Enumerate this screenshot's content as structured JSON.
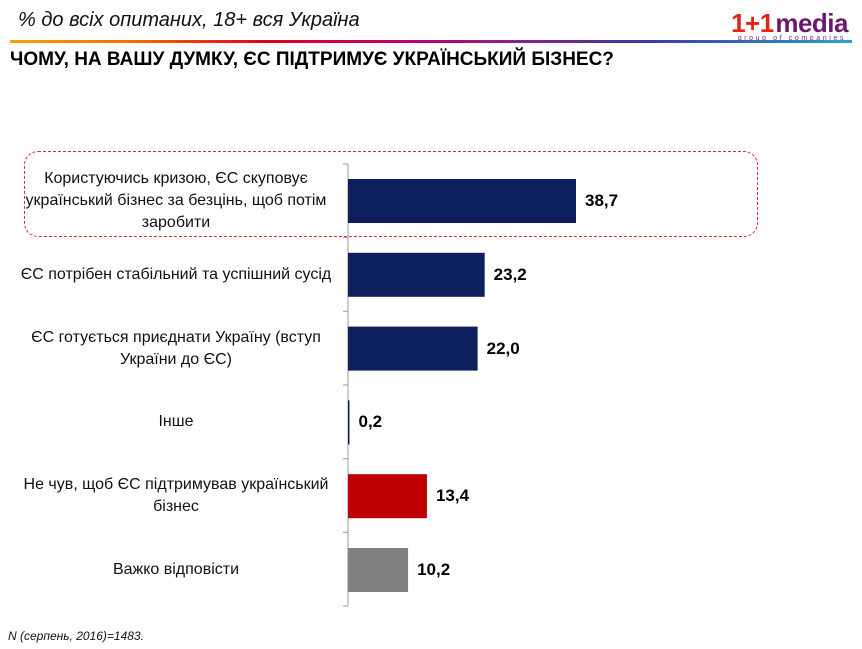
{
  "header": {
    "subtitle": "% до всіх опитаних, 18+ вся Україна",
    "title": "ЧОМУ, НА ВАШУ ДУМКУ, ЄС ПІДТРИМУЄ УКРАЇНСЬКИЙ БІЗНЕС?"
  },
  "logo": {
    "number": "1+1",
    "word": "media",
    "tagline": "group of companies"
  },
  "footnote": "N (серпень, 2016)=1483.",
  "chart_data": {
    "type": "bar",
    "orientation": "horizontal",
    "xlim": [
      0,
      45
    ],
    "grid": false,
    "highlighted_category_index": 0,
    "categories": [
      "Користуючись кризою, ЄС скуповує український бізнес за безцінь, щоб потім заробити",
      "ЄС потрібен стабільний та успішний сусід",
      "ЄС готується приєднати Україну (вступ України до ЄС)",
      "Інше",
      "Не чув, щоб ЄС підтримував український бізнес",
      "Важко відповісти"
    ],
    "values": [
      38.7,
      23.2,
      22.0,
      0.2,
      13.4,
      10.2
    ],
    "value_labels": [
      "38,7",
      "23,2",
      "22,0",
      "0,2",
      "13,4",
      "10,2"
    ],
    "colors": [
      "#0d1f5c",
      "#0d1f5c",
      "#0d1f5c",
      "#0d1f5c",
      "#c00000",
      "#808080"
    ]
  }
}
